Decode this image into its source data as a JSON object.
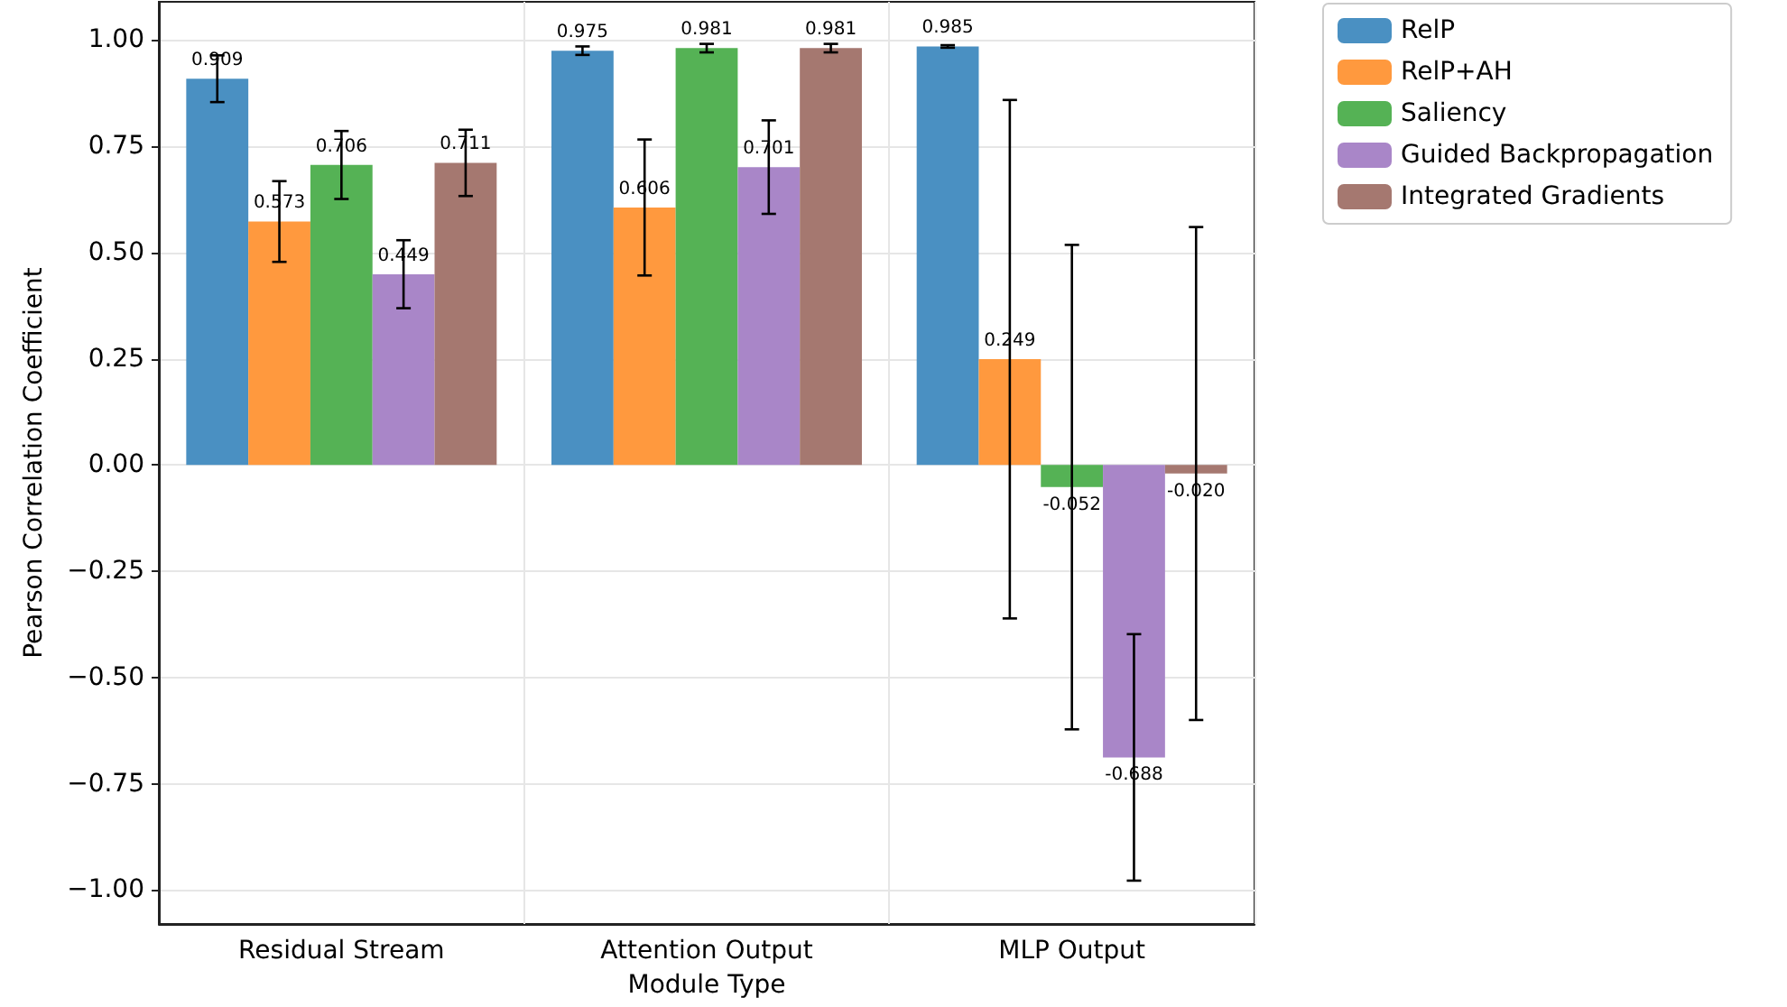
{
  "chart_data": {
    "type": "bar",
    "xlabel": "Module Type",
    "ylabel": "Pearson Correlation Coefficient",
    "categories": [
      "Residual Stream",
      "Attention Output",
      "MLP Output"
    ],
    "series": [
      {
        "name": "RelP",
        "color": "#4a90c2",
        "values": [
          0.909,
          0.975,
          0.985
        ],
        "errors": [
          0.055,
          0.01,
          0.003
        ],
        "value_labels": [
          "0.909",
          "0.975",
          "0.985"
        ]
      },
      {
        "name": "RelP+AH",
        "color": "#ff993e",
        "values": [
          0.573,
          0.606,
          0.249
        ],
        "errors": [
          0.095,
          0.16,
          0.61
        ],
        "value_labels": [
          "0.573",
          "0.606",
          "0.249"
        ]
      },
      {
        "name": "Saliency",
        "color": "#55b255",
        "values": [
          0.706,
          0.981,
          -0.052
        ],
        "errors": [
          0.08,
          0.01,
          0.57
        ],
        "value_labels": [
          "0.706",
          "0.981",
          "-0.052"
        ]
      },
      {
        "name": "Guided Backpropagation",
        "color": "#a986c8",
        "values": [
          0.449,
          0.701,
          -0.688
        ],
        "errors": [
          0.08,
          0.11,
          0.29
        ],
        "value_labels": [
          "0.449",
          "0.701",
          "-0.688"
        ]
      },
      {
        "name": "Integrated Gradients",
        "color": "#a57870",
        "values": [
          0.711,
          0.981,
          -0.02
        ],
        "errors": [
          0.078,
          0.01,
          0.58
        ],
        "value_labels": [
          "0.711",
          "0.981",
          "-0.020"
        ]
      }
    ],
    "ylim": [
      -1.08,
      1.09
    ],
    "yticks": [
      {
        "value": -1,
        "label": "−1.00"
      },
      {
        "value": -0.75,
        "label": "−0.75"
      },
      {
        "value": -0.5,
        "label": "−0.50"
      },
      {
        "value": -0.25,
        "label": "−0.25"
      },
      {
        "value": 0,
        "label": "0.00"
      },
      {
        "value": 0.25,
        "label": "0.25"
      },
      {
        "value": 0.5,
        "label": "0.50"
      },
      {
        "value": 0.75,
        "label": "0.75"
      },
      {
        "value": 1,
        "label": "1.00"
      }
    ],
    "grid": true,
    "legend": "top right"
  }
}
